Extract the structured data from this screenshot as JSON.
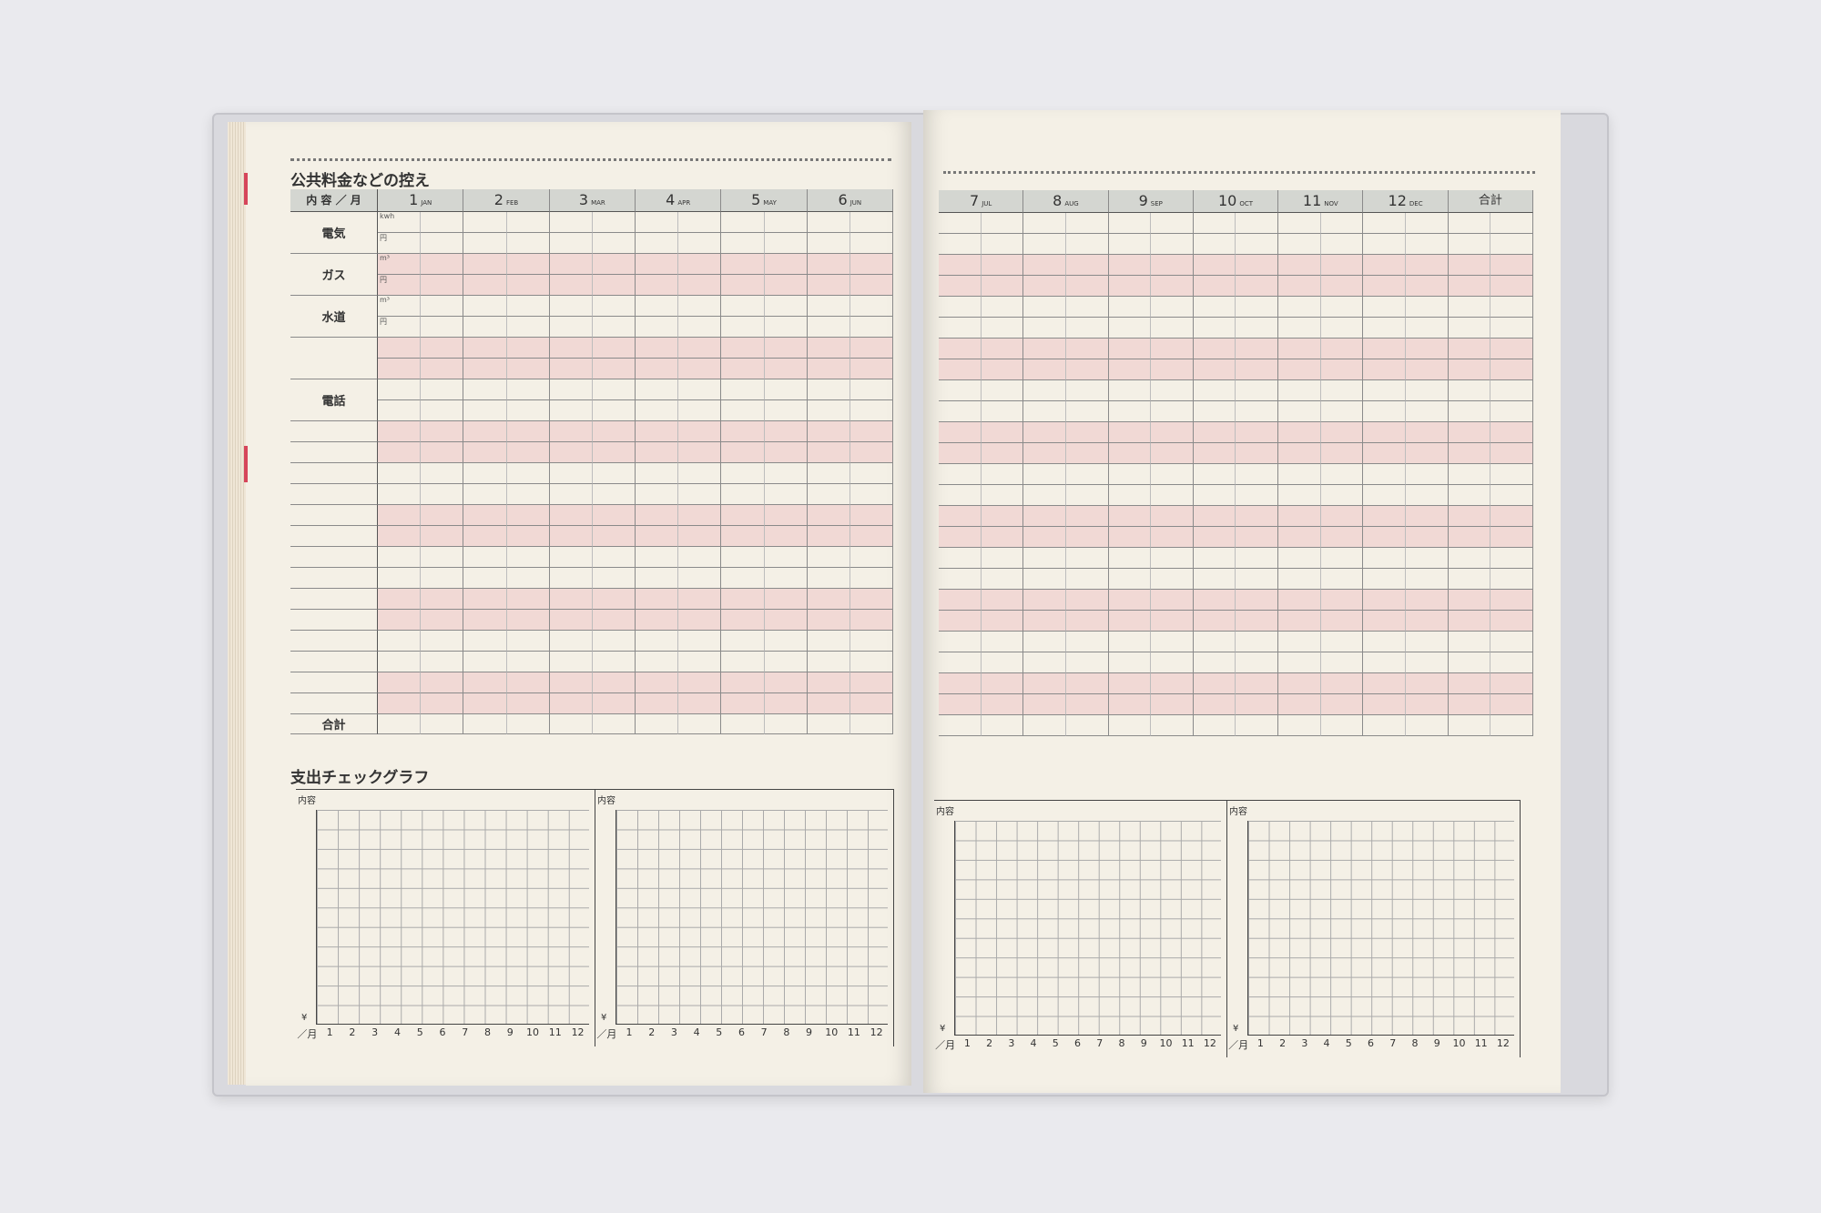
{
  "left": {
    "title": "公共料金などの控え",
    "label_header": "内 容 ／ 月",
    "months": [
      {
        "n": "1",
        "en": "JAN"
      },
      {
        "n": "2",
        "en": "FEB"
      },
      {
        "n": "3",
        "en": "MAR"
      },
      {
        "n": "4",
        "en": "APR"
      },
      {
        "n": "5",
        "en": "MAY"
      },
      {
        "n": "6",
        "en": "JUN"
      }
    ],
    "row_labels": [
      {
        "row": 0,
        "span": 2,
        "text": "電気"
      },
      {
        "row": 2,
        "span": 2,
        "text": "ガス"
      },
      {
        "row": 4,
        "span": 2,
        "text": "水道"
      },
      {
        "row": 6,
        "span": 2,
        "text": ""
      },
      {
        "row": 8,
        "span": 2,
        "text": "電話"
      }
    ],
    "units": [
      "kwh",
      "円",
      "m³",
      "円",
      "m³",
      "円"
    ],
    "total_label": "合計",
    "graph_title": "支出チェックグラフ"
  },
  "right": {
    "months": [
      {
        "n": "7",
        "en": "JUL"
      },
      {
        "n": "8",
        "en": "AUG"
      },
      {
        "n": "9",
        "en": "SEP"
      },
      {
        "n": "10",
        "en": "OCT"
      },
      {
        "n": "11",
        "en": "NOV"
      },
      {
        "n": "12",
        "en": "DEC"
      }
    ],
    "total_header": "合計"
  },
  "graph": {
    "content_label": "内容",
    "yen": "¥",
    "month_label": "／月",
    "x_ticks": [
      "1",
      "2",
      "3",
      "4",
      "5",
      "6",
      "7",
      "8",
      "9",
      "10",
      "11",
      "12"
    ]
  },
  "colors": {
    "page": "#f4f0e6",
    "pink_row": "#f1d9d5",
    "header": "#d4d6d1",
    "tab": "#d6455a"
  }
}
